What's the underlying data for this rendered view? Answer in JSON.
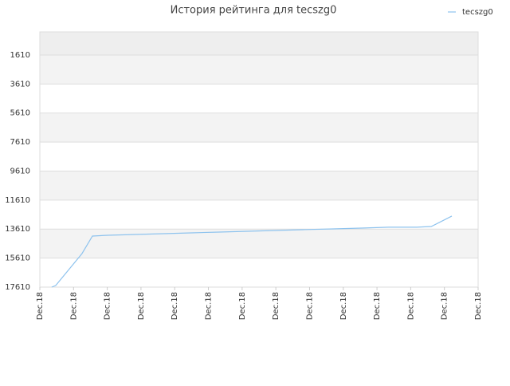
{
  "chart_data": {
    "type": "line",
    "title": "История рейтинга для tecszg0",
    "x": [
      0.35,
      0.47,
      1.25,
      1.56,
      2.01,
      2.84,
      3.66,
      4.49,
      5.32,
      6.15,
      6.97,
      7.8,
      8.7,
      9.53,
      10.35,
      11.18,
      11.61,
      12.22
    ],
    "series": [
      {
        "name": "tecszg0",
        "color": "#8ec3ee",
        "values": [
          17610,
          17500,
          15300,
          14090,
          14035,
          13980,
          13925,
          13870,
          13815,
          13760,
          13705,
          13650,
          13595,
          13540,
          13480,
          13480,
          13430,
          12715
        ]
      }
    ],
    "xlim": [
      0,
      13
    ],
    "xticks": [
      {
        "value": 0,
        "label": "Dec.18"
      },
      {
        "value": 1,
        "label": "Dec.18"
      },
      {
        "value": 2,
        "label": "Dec.18"
      },
      {
        "value": 3,
        "label": "Dec.18"
      },
      {
        "value": 4,
        "label": "Dec.18"
      },
      {
        "value": 5,
        "label": "Dec.18"
      },
      {
        "value": 6,
        "label": "Dec.18"
      },
      {
        "value": 7,
        "label": "Dec.18"
      },
      {
        "value": 8,
        "label": "Dec.18"
      },
      {
        "value": 9,
        "label": "Dec.18"
      },
      {
        "value": 10,
        "label": "Dec.18"
      },
      {
        "value": 11,
        "label": "Dec.18"
      },
      {
        "value": 12,
        "label": "Dec.18"
      },
      {
        "value": 13,
        "label": "Dec.18"
      }
    ],
    "ylim": [
      17610,
      16
    ],
    "yticks": [
      1610,
      3610,
      5610,
      7610,
      9610,
      11610,
      13610,
      15610,
      17610
    ],
    "grid": true,
    "legend": "top-right"
  }
}
